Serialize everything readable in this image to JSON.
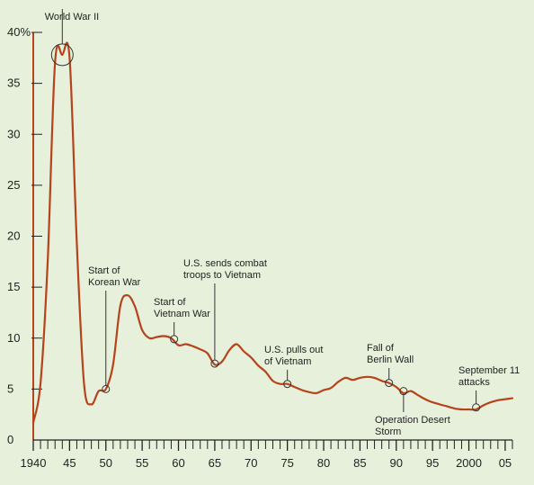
{
  "chart_data": {
    "type": "line",
    "title": "",
    "xlabel": "",
    "ylabel": "",
    "xlim": [
      1940,
      2006
    ],
    "ylim": [
      0,
      40
    ],
    "grid": false,
    "line_color": "#b5431b",
    "axis_color": "#222222",
    "x_tick_labels": [
      {
        "value": 1940,
        "label": "1940"
      },
      {
        "value": 1945,
        "label": "45"
      },
      {
        "value": 1950,
        "label": "50"
      },
      {
        "value": 1955,
        "label": "55"
      },
      {
        "value": 1960,
        "label": "60"
      },
      {
        "value": 1965,
        "label": "65"
      },
      {
        "value": 1970,
        "label": "70"
      },
      {
        "value": 1975,
        "label": "75"
      },
      {
        "value": 1980,
        "label": "80"
      },
      {
        "value": 1985,
        "label": "85"
      },
      {
        "value": 1990,
        "label": "90"
      },
      {
        "value": 1995,
        "label": "95"
      },
      {
        "value": 2000,
        "label": "2000"
      },
      {
        "value": 2005,
        "label": "05"
      }
    ],
    "y_tick_labels": [
      {
        "value": 0,
        "label": "0"
      },
      {
        "value": 5,
        "label": "5"
      },
      {
        "value": 10,
        "label": "10"
      },
      {
        "value": 15,
        "label": "15"
      },
      {
        "value": 20,
        "label": "20"
      },
      {
        "value": 25,
        "label": "25"
      },
      {
        "value": 30,
        "label": "30"
      },
      {
        "value": 35,
        "label": "35"
      },
      {
        "value": 40,
        "label": "40%"
      }
    ],
    "series": [
      {
        "x": [
          1940,
          1941,
          1942,
          1943,
          1944,
          1945,
          1946,
          1947,
          1948,
          1949,
          1950,
          1951,
          1952,
          1953,
          1954,
          1955,
          1956,
          1957,
          1958,
          1959,
          1960,
          1961,
          1962,
          1963,
          1964,
          1965,
          1966,
          1967,
          1968,
          1969,
          1970,
          1971,
          1972,
          1973,
          1974,
          1975,
          1976,
          1977,
          1978,
          1979,
          1980,
          1981,
          1982,
          1983,
          1984,
          1985,
          1986,
          1987,
          1988,
          1989,
          1990,
          1991,
          1992,
          1993,
          1994,
          1995,
          1996,
          1997,
          1998,
          1999,
          2000,
          2001,
          2002,
          2003,
          2004,
          2005,
          2006
        ],
        "y": [
          1.7,
          5.6,
          17.8,
          37.0,
          37.8,
          37.5,
          19.2,
          5.5,
          3.5,
          4.8,
          5.0,
          7.4,
          13.2,
          14.2,
          13.1,
          10.8,
          10.0,
          10.1,
          10.2,
          10.0,
          9.3,
          9.4,
          9.2,
          8.9,
          8.5,
          7.4,
          7.7,
          8.8,
          9.4,
          8.7,
          8.1,
          7.3,
          6.7,
          5.8,
          5.5,
          5.5,
          5.2,
          4.9,
          4.7,
          4.6,
          4.9,
          5.1,
          5.7,
          6.1,
          5.9,
          6.1,
          6.2,
          6.1,
          5.8,
          5.6,
          5.2,
          4.6,
          4.8,
          4.4,
          4.0,
          3.7,
          3.5,
          3.3,
          3.1,
          3.0,
          3.0,
          3.0,
          3.4,
          3.7,
          3.9,
          4.0,
          4.1
        ]
      }
    ],
    "annotations": [
      {
        "x": 1944,
        "y": 37.8,
        "lines": [
          "World War II"
        ]
      },
      {
        "x": 1950,
        "y": 5.0,
        "lines": [
          "Start of",
          "Korean War"
        ]
      },
      {
        "x": 1959.4,
        "y": 9.9,
        "lines": [
          "Start of",
          "Vietnam War"
        ]
      },
      {
        "x": 1965,
        "y": 7.5,
        "lines": [
          "U.S. sends combat",
          "troops to Vietnam"
        ]
      },
      {
        "x": 1975,
        "y": 5.5,
        "lines": [
          "U.S. pulls out",
          "of Vietnam"
        ]
      },
      {
        "x": 1989,
        "y": 5.6,
        "lines": [
          "Fall of",
          "Berlin Wall"
        ]
      },
      {
        "x": 1991,
        "y": 4.8,
        "lines": [
          "Operation Desert",
          "Storm"
        ]
      },
      {
        "x": 2001,
        "y": 3.2,
        "lines": [
          "September 11",
          "attacks"
        ]
      }
    ]
  }
}
